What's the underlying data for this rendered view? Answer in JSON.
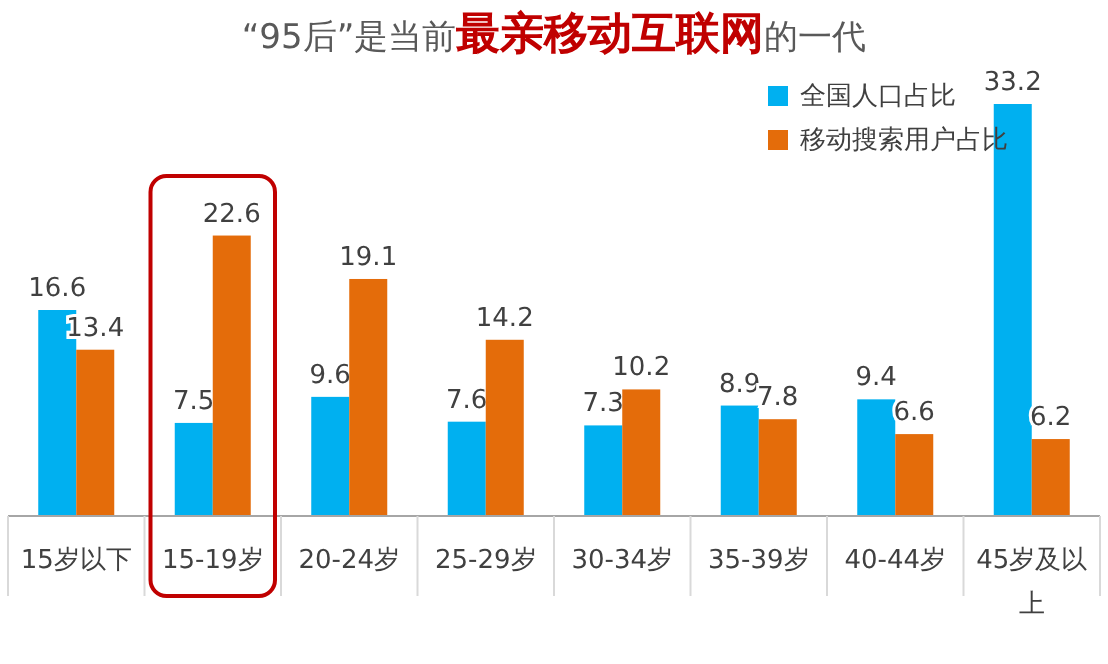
{
  "chart_data": {
    "type": "bar",
    "title": "“95后”是当前**最亲移动互联网**的一代",
    "categories": [
      "15岁以下",
      "15-19岁",
      "20-24岁",
      "25-29岁",
      "30-34岁",
      "35-39岁",
      "40-44岁",
      "45岁及以上"
    ],
    "series": [
      {
        "name": "全国人口占比",
        "color": "#00b0f0",
        "values": [
          16.6,
          7.5,
          9.6,
          7.6,
          7.3,
          8.9,
          9.4,
          33.2
        ]
      },
      {
        "name": "移动搜索用户占比",
        "color": "#e46c0a",
        "values": [
          13.4,
          22.6,
          19.1,
          14.2,
          10.2,
          7.8,
          6.6,
          6.2
        ]
      }
    ],
    "data_labels": true,
    "legend": "top right"
  }
}
